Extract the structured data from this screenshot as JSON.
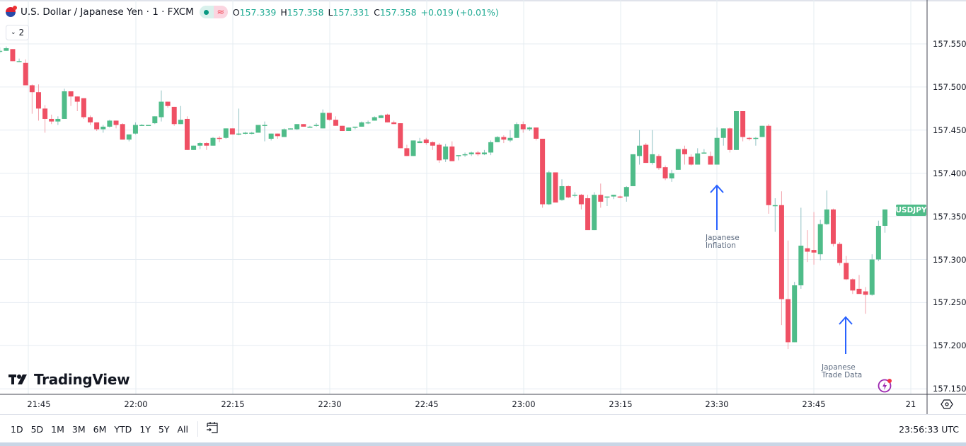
{
  "header": {
    "symbol_title": "U.S. Dollar / Japanese Yen · 1 · FXCM",
    "ohlc": {
      "open_label": "O",
      "open": "157.339",
      "high_label": "H",
      "high": "157.358",
      "low_label": "L",
      "low": "157.331",
      "close_label": "C",
      "close": "157.358",
      "change": "+0.019 (+0.01%)"
    },
    "status_icons": [
      "market-open-dot",
      "delayed-data-icon"
    ],
    "indicators_count": "2"
  },
  "price_axis": {
    "labels": [
      "157.550",
      "157.500",
      "157.450",
      "157.400",
      "157.350",
      "157.300",
      "157.250",
      "157.200",
      "157.150"
    ],
    "symbol_tag": "USDJPY"
  },
  "time_axis": {
    "labels": [
      "21:45",
      "22:00",
      "22:15",
      "22:30",
      "22:45",
      "23:00",
      "23:15",
      "23:30",
      "23:45",
      "21"
    ]
  },
  "bottom_bar": {
    "ranges": [
      "1D",
      "5D",
      "1M",
      "3M",
      "6M",
      "YTD",
      "1Y",
      "5Y",
      "All"
    ],
    "clock": "23:56:33 UTC"
  },
  "branding": {
    "logo_text": "TradingView"
  },
  "annotations": [
    {
      "line1": "Japanese",
      "line2": "Inflation"
    },
    {
      "line1": "Japanese",
      "line2": "Trade Data"
    }
  ],
  "colors": {
    "up": "#4fbc89",
    "down": "#ef5064",
    "up_wick": "#8fc1c3",
    "down_wick": "#f2a2ac",
    "grid": "#e6ecf2",
    "arrow": "#2962ff",
    "tag": "#4fbc89"
  },
  "chart_data": {
    "type": "candlestick",
    "title": "U.S. Dollar / Japanese Yen · 1 · FXCM",
    "symbol": "USDJPY",
    "interval": "1 minute",
    "xlabel": "",
    "ylabel": "",
    "ylim": [
      157.145,
      157.575
    ],
    "grid": true,
    "x_ticks": [
      "21:45",
      "22:00",
      "22:15",
      "22:30",
      "22:45",
      "23:00",
      "23:15",
      "23:30",
      "23:45",
      "21"
    ],
    "y_ticks": [
      157.55,
      157.5,
      157.45,
      157.4,
      157.35,
      157.3,
      157.25,
      157.2,
      157.15
    ],
    "annotations": [
      {
        "text": "Japanese Inflation",
        "time": "23:30",
        "type": "up-arrow"
      },
      {
        "text": "Japanese Trade Data",
        "time": "23:50",
        "type": "up-arrow"
      }
    ],
    "candles": [
      {
        "t": "21:39",
        "o": 157.547,
        "h": 157.548,
        "l": 157.537,
        "c": 157.54
      },
      {
        "t": "21:40",
        "o": 157.542,
        "h": 157.546,
        "l": 157.539,
        "c": 157.542
      },
      {
        "t": "21:41",
        "o": 157.542,
        "h": 157.547,
        "l": 157.542,
        "c": 157.545
      },
      {
        "t": "21:42",
        "o": 157.544,
        "h": 157.544,
        "l": 157.53,
        "c": 157.53
      },
      {
        "t": "21:43",
        "o": 157.53,
        "h": 157.533,
        "l": 157.529,
        "c": 157.53
      },
      {
        "t": "21:44",
        "o": 157.528,
        "h": 157.532,
        "l": 157.502,
        "c": 157.502
      },
      {
        "t": "21:45",
        "o": 157.502,
        "h": 157.503,
        "l": 157.469,
        "c": 157.494
      },
      {
        "t": "21:46",
        "o": 157.494,
        "h": 157.503,
        "l": 157.461,
        "c": 157.475
      },
      {
        "t": "21:47",
        "o": 157.475,
        "h": 157.479,
        "l": 157.447,
        "c": 157.463
      },
      {
        "t": "21:48",
        "o": 157.463,
        "h": 157.468,
        "l": 157.457,
        "c": 157.46
      },
      {
        "t": "21:49",
        "o": 157.46,
        "h": 157.466,
        "l": 157.456,
        "c": 157.463
      },
      {
        "t": "21:50",
        "o": 157.463,
        "h": 157.498,
        "l": 157.463,
        "c": 157.495
      },
      {
        "t": "21:51",
        "o": 157.495,
        "h": 157.495,
        "l": 157.478,
        "c": 157.489
      },
      {
        "t": "21:52",
        "o": 157.489,
        "h": 157.489,
        "l": 157.472,
        "c": 157.483
      },
      {
        "t": "21:53",
        "o": 157.487,
        "h": 157.487,
        "l": 157.463,
        "c": 157.465
      },
      {
        "t": "21:54",
        "o": 157.465,
        "h": 157.467,
        "l": 157.456,
        "c": 157.459
      },
      {
        "t": "21:55",
        "o": 157.459,
        "h": 157.459,
        "l": 157.449,
        "c": 157.451
      },
      {
        "t": "21:56",
        "o": 157.451,
        "h": 157.456,
        "l": 157.447,
        "c": 157.454
      },
      {
        "t": "21:57",
        "o": 157.454,
        "h": 157.462,
        "l": 157.453,
        "c": 157.461
      },
      {
        "t": "21:58",
        "o": 157.461,
        "h": 157.461,
        "l": 157.452,
        "c": 157.456
      },
      {
        "t": "21:59",
        "o": 157.457,
        "h": 157.458,
        "l": 157.439,
        "c": 157.439
      },
      {
        "t": "22:00",
        "o": 157.439,
        "h": 157.445,
        "l": 157.437,
        "c": 157.445
      },
      {
        "t": "22:01",
        "o": 157.446,
        "h": 157.459,
        "l": 157.445,
        "c": 157.456
      },
      {
        "t": "22:02",
        "o": 157.456,
        "h": 157.457,
        "l": 157.455,
        "c": 157.456
      },
      {
        "t": "22:03",
        "o": 157.456,
        "h": 157.456,
        "l": 157.455,
        "c": 157.456
      },
      {
        "t": "22:04",
        "o": 157.458,
        "h": 157.466,
        "l": 157.457,
        "c": 157.466
      },
      {
        "t": "22:05",
        "o": 157.465,
        "h": 157.496,
        "l": 157.46,
        "c": 157.483
      },
      {
        "t": "22:06",
        "o": 157.483,
        "h": 157.483,
        "l": 157.476,
        "c": 157.478
      },
      {
        "t": "22:07",
        "o": 157.477,
        "h": 157.477,
        "l": 157.455,
        "c": 157.457
      },
      {
        "t": "22:08",
        "o": 157.457,
        "h": 157.478,
        "l": 157.457,
        "c": 157.462
      },
      {
        "t": "22:09",
        "o": 157.463,
        "h": 157.466,
        "l": 157.427,
        "c": 157.427
      },
      {
        "t": "22:10",
        "o": 157.427,
        "h": 157.432,
        "l": 157.427,
        "c": 157.432
      },
      {
        "t": "22:11",
        "o": 157.432,
        "h": 157.436,
        "l": 157.428,
        "c": 157.435
      },
      {
        "t": "22:12",
        "o": 157.435,
        "h": 157.436,
        "l": 157.427,
        "c": 157.432
      },
      {
        "t": "22:13",
        "o": 157.432,
        "h": 157.442,
        "l": 157.432,
        "c": 157.441
      },
      {
        "t": "22:14",
        "o": 157.441,
        "h": 157.443,
        "l": 157.436,
        "c": 157.44
      },
      {
        "t": "22:15",
        "o": 157.441,
        "h": 157.452,
        "l": 157.44,
        "c": 157.452
      },
      {
        "t": "22:16",
        "o": 157.452,
        "h": 157.452,
        "l": 157.445,
        "c": 157.445
      },
      {
        "t": "22:17",
        "o": 157.445,
        "h": 157.475,
        "l": 157.444,
        "c": 157.446
      },
      {
        "t": "22:18",
        "o": 157.446,
        "h": 157.448,
        "l": 157.445,
        "c": 157.447
      },
      {
        "t": "22:19",
        "o": 157.447,
        "h": 157.448,
        "l": 157.445,
        "c": 157.447
      },
      {
        "t": "22:20",
        "o": 157.447,
        "h": 157.456,
        "l": 157.447,
        "c": 157.456
      },
      {
        "t": "22:21",
        "o": 157.456,
        "h": 157.46,
        "l": 157.437,
        "c": 157.456
      },
      {
        "t": "22:22",
        "o": 157.44,
        "h": 157.446,
        "l": 157.438,
        "c": 157.446
      },
      {
        "t": "22:23",
        "o": 157.446,
        "h": 157.446,
        "l": 157.44,
        "c": 157.443
      },
      {
        "t": "22:24",
        "o": 157.442,
        "h": 157.452,
        "l": 157.442,
        "c": 157.451
      },
      {
        "t": "22:25",
        "o": 157.451,
        "h": 157.452,
        "l": 157.451,
        "c": 157.452
      },
      {
        "t": "22:26",
        "o": 157.451,
        "h": 157.457,
        "l": 157.45,
        "c": 157.457
      },
      {
        "t": "22:27",
        "o": 157.457,
        "h": 157.457,
        "l": 157.454,
        "c": 157.454
      },
      {
        "t": "22:28",
        "o": 157.454,
        "h": 157.455,
        "l": 157.453,
        "c": 157.454
      },
      {
        "t": "22:29",
        "o": 157.455,
        "h": 157.458,
        "l": 157.454,
        "c": 157.456
      },
      {
        "t": "22:30",
        "o": 157.452,
        "h": 157.474,
        "l": 157.452,
        "c": 157.47
      },
      {
        "t": "22:31",
        "o": 157.47,
        "h": 157.47,
        "l": 157.461,
        "c": 157.462
      },
      {
        "t": "22:32",
        "o": 157.462,
        "h": 157.466,
        "l": 157.455,
        "c": 157.455
      },
      {
        "t": "22:33",
        "o": 157.455,
        "h": 157.455,
        "l": 157.449,
        "c": 157.449
      },
      {
        "t": "22:34",
        "o": 157.449,
        "h": 157.453,
        "l": 157.449,
        "c": 157.453
      },
      {
        "t": "22:35",
        "o": 157.453,
        "h": 157.454,
        "l": 157.451,
        "c": 157.454
      },
      {
        "t": "22:36",
        "o": 157.454,
        "h": 157.46,
        "l": 157.454,
        "c": 157.459
      },
      {
        "t": "22:37",
        "o": 157.459,
        "h": 157.461,
        "l": 157.457,
        "c": 157.459
      },
      {
        "t": "22:38",
        "o": 157.461,
        "h": 157.466,
        "l": 157.461,
        "c": 157.465
      },
      {
        "t": "22:39",
        "o": 157.464,
        "h": 157.468,
        "l": 157.464,
        "c": 157.467
      },
      {
        "t": "22:40",
        "o": 157.468,
        "h": 157.469,
        "l": 157.459,
        "c": 157.459
      },
      {
        "t": "22:41",
        "o": 157.459,
        "h": 157.461,
        "l": 157.457,
        "c": 157.457
      },
      {
        "t": "22:42",
        "o": 157.458,
        "h": 157.458,
        "l": 157.429,
        "c": 157.429
      },
      {
        "t": "22:43",
        "o": 157.429,
        "h": 157.433,
        "l": 157.42,
        "c": 157.42
      },
      {
        "t": "22:44",
        "o": 157.42,
        "h": 157.438,
        "l": 157.42,
        "c": 157.438
      },
      {
        "t": "22:45",
        "o": 157.435,
        "h": 157.441,
        "l": 157.435,
        "c": 157.437
      },
      {
        "t": "22:46",
        "o": 157.439,
        "h": 157.441,
        "l": 157.433,
        "c": 157.435
      },
      {
        "t": "22:47",
        "o": 157.436,
        "h": 157.437,
        "l": 157.427,
        "c": 157.432
      },
      {
        "t": "22:48",
        "o": 157.433,
        "h": 157.435,
        "l": 157.412,
        "c": 157.415
      },
      {
        "t": "22:49",
        "o": 157.416,
        "h": 157.434,
        "l": 157.413,
        "c": 157.431
      },
      {
        "t": "22:50",
        "o": 157.431,
        "h": 157.437,
        "l": 157.415,
        "c": 157.414
      },
      {
        "t": "22:51",
        "o": 157.42,
        "h": 157.42,
        "l": 157.415,
        "c": 157.421
      },
      {
        "t": "22:52",
        "o": 157.421,
        "h": 157.424,
        "l": 157.419,
        "c": 157.422
      },
      {
        "t": "22:53",
        "o": 157.422,
        "h": 157.425,
        "l": 157.42,
        "c": 157.424
      },
      {
        "t": "22:54",
        "o": 157.424,
        "h": 157.426,
        "l": 157.42,
        "c": 157.422
      },
      {
        "t": "22:55",
        "o": 157.422,
        "h": 157.427,
        "l": 157.421,
        "c": 157.424
      },
      {
        "t": "22:56",
        "o": 157.424,
        "h": 157.438,
        "l": 157.421,
        "c": 157.436
      },
      {
        "t": "22:57",
        "o": 157.436,
        "h": 157.443,
        "l": 157.436,
        "c": 157.442
      },
      {
        "t": "22:58",
        "o": 157.442,
        "h": 157.444,
        "l": 157.435,
        "c": 157.439
      },
      {
        "t": "22:59",
        "o": 157.438,
        "h": 157.45,
        "l": 157.436,
        "c": 157.441
      },
      {
        "t": "23:00",
        "o": 157.441,
        "h": 157.459,
        "l": 157.441,
        "c": 157.457
      },
      {
        "t": "23:01",
        "o": 157.457,
        "h": 157.46,
        "l": 157.447,
        "c": 157.451
      },
      {
        "t": "23:02",
        "o": 157.451,
        "h": 157.454,
        "l": 157.449,
        "c": 157.453
      },
      {
        "t": "23:03",
        "o": 157.453,
        "h": 157.453,
        "l": 157.438,
        "c": 157.44
      },
      {
        "t": "23:04",
        "o": 157.44,
        "h": 157.44,
        "l": 157.36,
        "c": 157.364
      },
      {
        "t": "23:05",
        "o": 157.364,
        "h": 157.403,
        "l": 157.363,
        "c": 157.401
      },
      {
        "t": "23:06",
        "o": 157.401,
        "h": 157.401,
        "l": 157.368,
        "c": 157.366
      },
      {
        "t": "23:07",
        "o": 157.369,
        "h": 157.393,
        "l": 157.368,
        "c": 157.385
      },
      {
        "t": "23:08",
        "o": 157.385,
        "h": 157.386,
        "l": 157.371,
        "c": 157.372
      },
      {
        "t": "23:09",
        "o": 157.374,
        "h": 157.378,
        "l": 157.372,
        "c": 157.375
      },
      {
        "t": "23:10",
        "o": 157.375,
        "h": 157.376,
        "l": 157.358,
        "c": 157.364
      },
      {
        "t": "23:11",
        "o": 157.371,
        "h": 157.375,
        "l": 157.345,
        "c": 157.334
      },
      {
        "t": "23:12",
        "o": 157.334,
        "h": 157.378,
        "l": 157.334,
        "c": 157.375
      },
      {
        "t": "23:13",
        "o": 157.375,
        "h": 157.388,
        "l": 157.36,
        "c": 157.367
      },
      {
        "t": "23:14",
        "o": 157.372,
        "h": 157.373,
        "l": 157.362,
        "c": 157.373
      },
      {
        "t": "23:15",
        "o": 157.373,
        "h": 157.375,
        "l": 157.37,
        "c": 157.375
      },
      {
        "t": "23:16",
        "o": 157.373,
        "h": 157.374,
        "l": 157.371,
        "c": 157.372
      },
      {
        "t": "23:17",
        "o": 157.373,
        "h": 157.385,
        "l": 157.367,
        "c": 157.384
      },
      {
        "t": "23:18",
        "o": 157.385,
        "h": 157.416,
        "l": 157.387,
        "c": 157.422
      },
      {
        "t": "23:19",
        "o": 157.42,
        "h": 157.45,
        "l": 157.41,
        "c": 157.432
      },
      {
        "t": "23:20",
        "o": 157.433,
        "h": 157.435,
        "l": 157.412,
        "c": 157.412
      },
      {
        "t": "23:21",
        "o": 157.412,
        "h": 157.45,
        "l": 157.41,
        "c": 157.422
      },
      {
        "t": "23:22",
        "o": 157.42,
        "h": 157.422,
        "l": 157.404,
        "c": 157.406
      },
      {
        "t": "23:23",
        "o": 157.407,
        "h": 157.409,
        "l": 157.392,
        "c": 157.394
      },
      {
        "t": "23:24",
        "o": 157.394,
        "h": 157.404,
        "l": 157.39,
        "c": 157.4
      },
      {
        "t": "23:25",
        "o": 157.404,
        "h": 157.428,
        "l": 157.404,
        "c": 157.428
      },
      {
        "t": "23:26",
        "o": 157.428,
        "h": 157.432,
        "l": 157.41,
        "c": 157.422
      },
      {
        "t": "23:27",
        "o": 157.419,
        "h": 157.422,
        "l": 157.409,
        "c": 157.41
      },
      {
        "t": "23:28",
        "o": 157.41,
        "h": 157.429,
        "l": 157.41,
        "c": 157.423
      },
      {
        "t": "23:29",
        "o": 157.424,
        "h": 157.428,
        "l": 157.423,
        "c": 157.424
      },
      {
        "t": "23:30",
        "o": 157.42,
        "h": 157.425,
        "l": 157.41,
        "c": 157.41
      },
      {
        "t": "23:31",
        "o": 157.41,
        "h": 157.453,
        "l": 157.41,
        "c": 157.441
      },
      {
        "t": "23:32",
        "o": 157.441,
        "h": 157.452,
        "l": 157.432,
        "c": 157.452
      },
      {
        "t": "23:33",
        "o": 157.452,
        "h": 157.453,
        "l": 157.424,
        "c": 157.427
      },
      {
        "t": "23:34",
        "o": 157.427,
        "h": 157.472,
        "l": 157.427,
        "c": 157.472
      },
      {
        "t": "23:35",
        "o": 157.472,
        "h": 157.472,
        "l": 157.437,
        "c": 157.442
      },
      {
        "t": "23:36",
        "o": 157.441,
        "h": 157.442,
        "l": 157.438,
        "c": 157.44
      },
      {
        "t": "23:37",
        "o": 157.44,
        "h": 157.442,
        "l": 157.432,
        "c": 157.441
      },
      {
        "t": "23:38",
        "o": 157.442,
        "h": 157.455,
        "l": 157.442,
        "c": 157.455
      },
      {
        "t": "23:39",
        "o": 157.455,
        "h": 157.457,
        "l": 157.353,
        "c": 157.363
      },
      {
        "t": "23:40",
        "o": 157.363,
        "h": 157.371,
        "l": 157.332,
        "c": 157.363
      },
      {
        "t": "23:41",
        "o": 157.363,
        "h": 157.379,
        "l": 157.224,
        "c": 157.254
      },
      {
        "t": "23:42",
        "o": 157.254,
        "h": 157.322,
        "l": 157.196,
        "c": 157.204
      },
      {
        "t": "23:43",
        "o": 157.204,
        "h": 157.274,
        "l": 157.204,
        "c": 157.27
      },
      {
        "t": "23:44",
        "o": 157.27,
        "h": 157.36,
        "l": 157.266,
        "c": 157.316
      },
      {
        "t": "23:45",
        "o": 157.313,
        "h": 157.334,
        "l": 157.297,
        "c": 157.309
      },
      {
        "t": "23:46",
        "o": 157.311,
        "h": 157.355,
        "l": 157.294,
        "c": 157.308
      },
      {
        "t": "23:47",
        "o": 157.306,
        "h": 157.346,
        "l": 157.299,
        "c": 157.341
      },
      {
        "t": "23:48",
        "o": 157.341,
        "h": 157.38,
        "l": 157.34,
        "c": 157.358
      },
      {
        "t": "23:49",
        "o": 157.358,
        "h": 157.359,
        "l": 157.315,
        "c": 157.318
      },
      {
        "t": "23:50",
        "o": 157.318,
        "h": 157.32,
        "l": 157.293,
        "c": 157.296
      },
      {
        "t": "23:51",
        "o": 157.296,
        "h": 157.304,
        "l": 157.276,
        "c": 157.277
      },
      {
        "t": "23:52",
        "o": 157.277,
        "h": 157.278,
        "l": 157.26,
        "c": 157.264
      },
      {
        "t": "23:53",
        "o": 157.266,
        "h": 157.282,
        "l": 157.261,
        "c": 157.26
      },
      {
        "t": "23:54",
        "o": 157.263,
        "h": 157.268,
        "l": 157.237,
        "c": 157.259
      },
      {
        "t": "23:55",
        "o": 157.259,
        "h": 157.306,
        "l": 157.258,
        "c": 157.3
      },
      {
        "t": "23:56",
        "o": 157.3,
        "h": 157.345,
        "l": 157.298,
        "c": 157.339
      },
      {
        "t": "23:57",
        "o": 157.339,
        "h": 157.358,
        "l": 157.331,
        "c": 157.358
      }
    ]
  }
}
